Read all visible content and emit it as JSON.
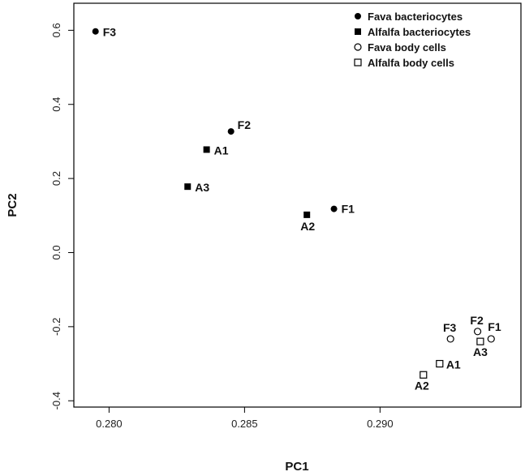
{
  "chart_data": {
    "type": "scatter",
    "title": "",
    "xlabel": "PC1",
    "ylabel": "PC2",
    "xlim": [
      0.2787,
      0.2952
    ],
    "ylim": [
      -0.417,
      0.673
    ],
    "xticks": [
      0.28,
      0.285,
      0.29
    ],
    "xtick_labels": [
      "0.280",
      "0.285",
      "0.290"
    ],
    "yticks": [
      -0.4,
      -0.2,
      0.0,
      0.2,
      0.4,
      0.6
    ],
    "ytick_labels": [
      "-0.4",
      "-0.2",
      "0.0",
      "0.2",
      "0.4",
      "0.6"
    ],
    "grid": false,
    "legend_position": "top-right",
    "series": [
      {
        "name": "Fava bacteriocytes",
        "marker": "filled-circle",
        "points": [
          {
            "label": "F3",
            "x": 0.2795,
            "y": 0.597
          },
          {
            "label": "F2",
            "x": 0.2845,
            "y": 0.327
          },
          {
            "label": "F1",
            "x": 0.2883,
            "y": 0.118
          }
        ]
      },
      {
        "name": "Alfalfa bacteriocytes",
        "marker": "filled-square",
        "points": [
          {
            "label": "A1",
            "x": 0.2836,
            "y": 0.278
          },
          {
            "label": "A3",
            "x": 0.2829,
            "y": 0.178
          },
          {
            "label": "A2",
            "x": 0.2873,
            "y": 0.102
          }
        ]
      },
      {
        "name": "Fava body cells",
        "marker": "open-circle",
        "points": [
          {
            "label": "F3",
            "x": 0.2926,
            "y": -0.233
          },
          {
            "label": "F2",
            "x": 0.2936,
            "y": -0.213
          },
          {
            "label": "F1",
            "x": 0.2941,
            "y": -0.233
          }
        ]
      },
      {
        "name": "Alfalfa body cells",
        "marker": "open-square",
        "points": [
          {
            "label": "A1",
            "x": 0.2922,
            "y": -0.3
          },
          {
            "label": "A2",
            "x": 0.2916,
            "y": -0.33
          },
          {
            "label": "A3",
            "x": 0.2937,
            "y": -0.24
          }
        ]
      }
    ]
  }
}
